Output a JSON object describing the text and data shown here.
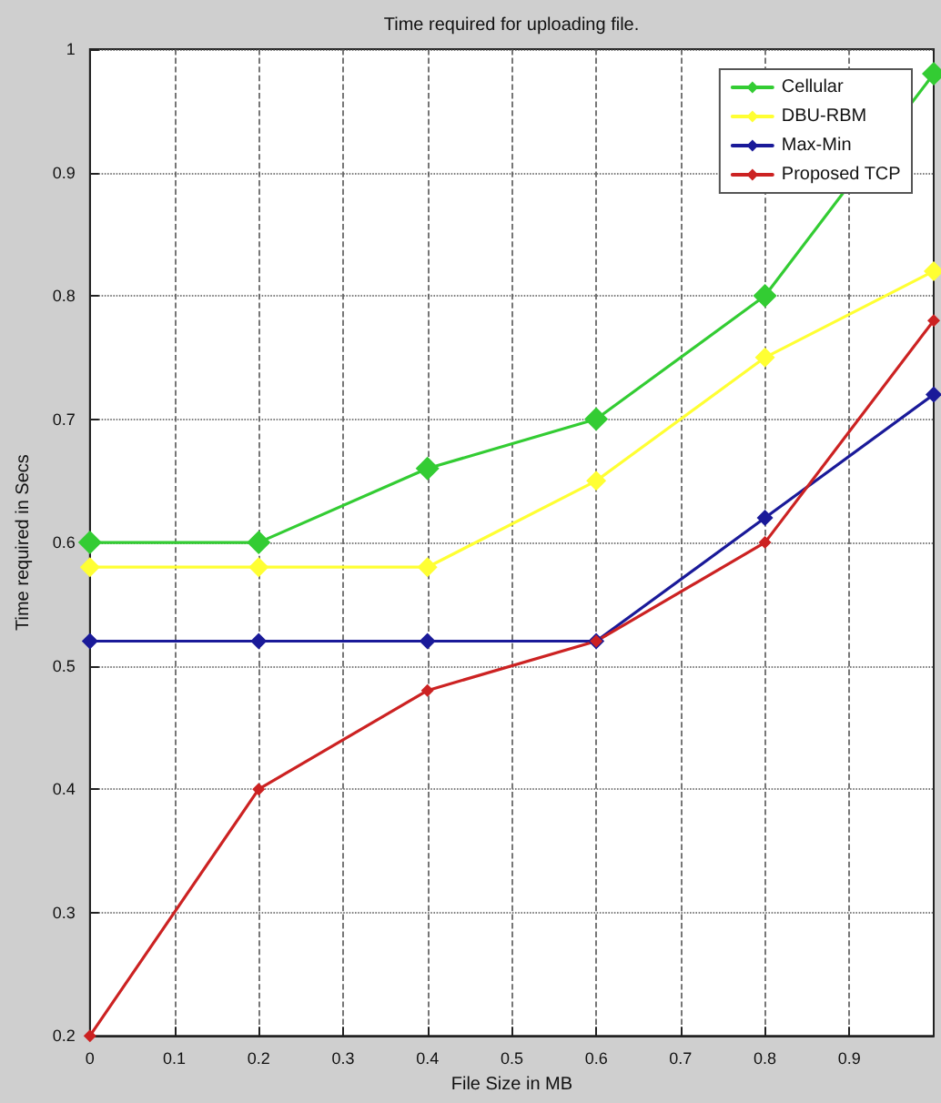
{
  "chart_data": {
    "type": "line",
    "title": "Time required for uploading file.",
    "xlabel": "File Size in MB",
    "ylabel": "Time required in Secs",
    "x": [
      0,
      0.2,
      0.4,
      0.6,
      0.8,
      1.0
    ],
    "series": [
      {
        "name": "Cellular",
        "color": "#33cc33",
        "values": [
          0.6,
          0.6,
          0.66,
          0.7,
          0.8,
          0.98
        ]
      },
      {
        "name": "DBU-RBM",
        "color": "#ffff33",
        "values": [
          0.58,
          0.58,
          0.58,
          0.65,
          0.75,
          0.82
        ]
      },
      {
        "name": "Max-Min",
        "color": "#1a1a99",
        "values": [
          0.52,
          0.52,
          0.52,
          0.52,
          0.62,
          0.72
        ]
      },
      {
        "name": "Proposed TCP",
        "color": "#cc2222",
        "values": [
          0.2,
          0.4,
          0.48,
          0.52,
          0.6,
          0.78
        ]
      }
    ],
    "xlim": [
      0,
      1
    ],
    "xticks": [
      0,
      0.1,
      0.2,
      0.3,
      0.4,
      0.5,
      0.6,
      0.7,
      0.8,
      0.9
    ],
    "ylim": [
      0.2,
      1
    ],
    "yticks": [
      0.2,
      0.3,
      0.4,
      0.5,
      0.6,
      0.7,
      0.8,
      0.9,
      1
    ],
    "grid": true,
    "legend": "top right",
    "marker": "diamond",
    "line_style": "solid"
  }
}
